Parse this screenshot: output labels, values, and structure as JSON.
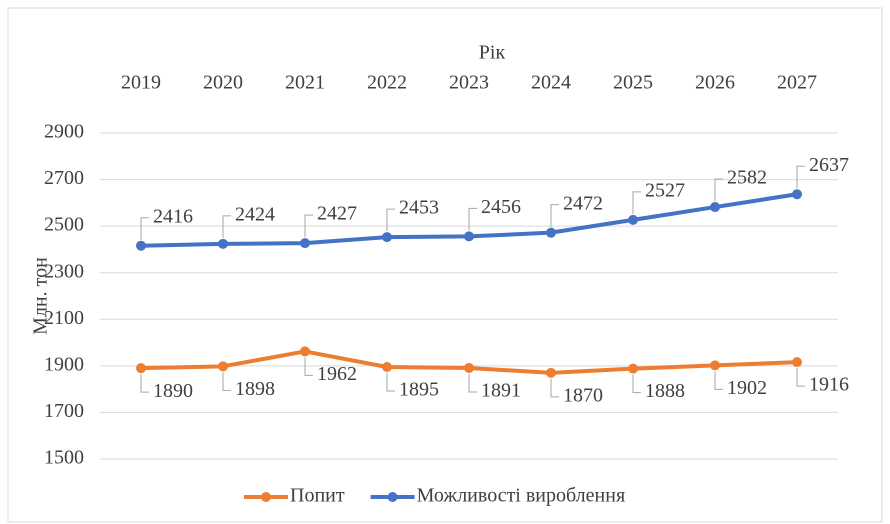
{
  "chart_data": {
    "type": "line",
    "x_label": "Рік",
    "y_label": "Млн. тон",
    "categories": [
      "2019",
      "2020",
      "2021",
      "2022",
      "2023",
      "2024",
      "2025",
      "2026",
      "2027"
    ],
    "series": [
      {
        "name": "Попит",
        "color": "#ed7d31",
        "values": [
          1890,
          1898,
          1962,
          1895,
          1891,
          1870,
          1888,
          1902,
          1916
        ]
      },
      {
        "name": "Можливості вироблення",
        "color": "#4472c4",
        "values": [
          2416,
          2424,
          2427,
          2453,
          2456,
          2472,
          2527,
          2582,
          2637
        ]
      }
    ],
    "ylim": [
      1500,
      2900
    ],
    "yticks": [
      1500,
      1700,
      1900,
      2100,
      2300,
      2500,
      2700,
      2900
    ],
    "grid": true,
    "legend": "bottom"
  }
}
